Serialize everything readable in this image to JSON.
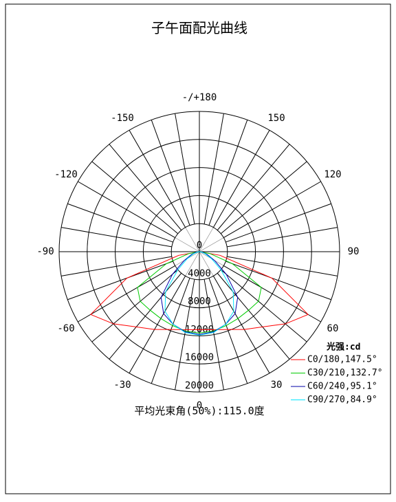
{
  "chart_data": {
    "type": "polar",
    "title": "子午面配光曲线",
    "footer": "平均光束角(50%):115.0度",
    "legend_title": "光强:cd",
    "legend_position": "lower right",
    "angles": [
      -90,
      -80,
      -70,
      -60,
      -50,
      -40,
      -30,
      -20,
      -10,
      0,
      10,
      20,
      30,
      40,
      50,
      60,
      70,
      80,
      90
    ],
    "series": [
      {
        "name": "C0/180,147.5°",
        "color": "#ff0000",
        "values": [
          0,
          3000,
          11000,
          17900,
          16000,
          14000,
          12800,
          11800,
          11300,
          11100,
          11300,
          11800,
          12800,
          14000,
          16000,
          17900,
          11000,
          3000,
          0
        ]
      },
      {
        "name": "C30/210,132.7°",
        "color": "#00cc00",
        "values": [
          0,
          1500,
          5000,
          10200,
          11000,
          10900,
          11000,
          11200,
          11500,
          11600,
          11500,
          11200,
          11000,
          10900,
          11000,
          10200,
          5000,
          1500,
          0
        ]
      },
      {
        "name": "C60/240,95.1°",
        "color": "#0000aa",
        "values": [
          0,
          500,
          1200,
          2500,
          5000,
          8500,
          10200,
          11000,
          11600,
          11800,
          11600,
          11000,
          10200,
          8500,
          5000,
          2500,
          1200,
          500,
          0
        ]
      },
      {
        "name": "C90/270,84.9°",
        "color": "#00e5ff",
        "values": [
          0,
          300,
          900,
          2000,
          4000,
          7500,
          9800,
          11000,
          11700,
          11900,
          11700,
          11000,
          9800,
          7500,
          4000,
          2000,
          900,
          300,
          0
        ]
      }
    ],
    "rlim": [
      0,
      20000
    ],
    "rticks": [
      0,
      4000,
      8000,
      12000,
      16000,
      20000
    ],
    "angle_ticks": [
      0,
      30,
      60,
      90,
      120,
      150,
      {
        "value": 180,
        "label": "-/+180"
      },
      -150,
      -120,
      -90,
      -60,
      -30
    ]
  }
}
